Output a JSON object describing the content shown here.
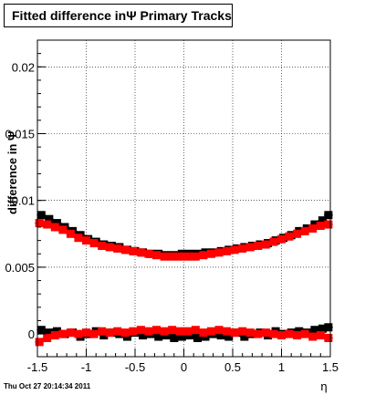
{
  "chart_data": {
    "type": "scatter",
    "title": "Fitted difference inΨ   Primary Tracks",
    "xlabel": "η",
    "ylabel": "difference in Ψ",
    "xlim": [
      -1.5,
      1.5
    ],
    "ylim": [
      -0.0017,
      0.022
    ],
    "grid": true,
    "x_ticks": [
      "-1.5",
      "-1",
      "-0.5",
      "0",
      "0.5",
      "1",
      "1.5"
    ],
    "y_ticks": [
      "0",
      "0.005",
      "0.01",
      "0.015",
      "0.02"
    ],
    "series": [
      {
        "color": "#000000",
        "x": [
          -1.46,
          -1.38,
          -1.3,
          -1.22,
          -1.14,
          -1.06,
          -0.98,
          -0.9,
          -0.82,
          -0.74,
          -0.66,
          -0.58,
          -0.5,
          -0.42,
          -0.34,
          -0.26,
          -0.18,
          -0.1,
          -0.02,
          0.06,
          0.14,
          0.22,
          0.3,
          0.38,
          0.46,
          0.54,
          0.62,
          0.7,
          0.78,
          0.86,
          0.94,
          1.02,
          1.1,
          1.18,
          1.26,
          1.34,
          1.42,
          1.48
        ],
        "y": [
          0.0089,
          0.0086,
          0.0083,
          0.008,
          0.0077,
          0.0074,
          0.0071,
          0.0069,
          0.0067,
          0.0066,
          0.0065,
          0.0063,
          0.0062,
          0.0061,
          0.006,
          0.006,
          0.0059,
          0.0059,
          0.006,
          0.006,
          0.006,
          0.0061,
          0.0061,
          0.0062,
          0.0063,
          0.0064,
          0.0065,
          0.0066,
          0.0067,
          0.0068,
          0.007,
          0.0072,
          0.0074,
          0.0077,
          0.0079,
          0.0082,
          0.0085,
          0.0089
        ],
        "lower_y": [
          0.0003,
          0.0001,
          0.0002,
          0.0,
          0.0001,
          -0.0002,
          0.0,
          0.0002,
          -0.0001,
          0.0001,
          0.0,
          -0.0002,
          0.0001,
          -0.0001,
          0.0,
          -0.0002,
          -0.0001,
          -0.0003,
          -0.0002,
          -0.0001,
          -0.0003,
          -0.0002,
          0.0,
          -0.0001,
          -0.0002,
          0.0001,
          -0.0002,
          0.0,
          0.0001,
          -0.0001,
          0.0002,
          0.0,
          0.0001,
          0.0002,
          0.0001,
          0.0003,
          0.0004,
          0.0005
        ]
      },
      {
        "color": "#ff0000",
        "x": [
          -1.48,
          -1.4,
          -1.32,
          -1.24,
          -1.16,
          -1.08,
          -1.0,
          -0.92,
          -0.84,
          -0.76,
          -0.68,
          -0.6,
          -0.52,
          -0.44,
          -0.36,
          -0.28,
          -0.2,
          -0.12,
          -0.04,
          0.04,
          0.12,
          0.2,
          0.28,
          0.36,
          0.44,
          0.52,
          0.6,
          0.68,
          0.76,
          0.84,
          0.92,
          1.0,
          1.08,
          1.16,
          1.24,
          1.32,
          1.4,
          1.48
        ],
        "y": [
          0.0083,
          0.0082,
          0.008,
          0.0078,
          0.0075,
          0.0072,
          0.007,
          0.0068,
          0.0066,
          0.0065,
          0.0064,
          0.0063,
          0.0062,
          0.0061,
          0.006,
          0.0059,
          0.0058,
          0.0058,
          0.0058,
          0.0058,
          0.0058,
          0.0059,
          0.006,
          0.0061,
          0.0062,
          0.0063,
          0.0064,
          0.0065,
          0.0066,
          0.0067,
          0.0069,
          0.0071,
          0.0073,
          0.0075,
          0.0077,
          0.0079,
          0.0081,
          0.0082
        ],
        "lower_y": [
          -0.0006,
          -0.0003,
          -0.0001,
          0.0,
          0.0001,
          0.0,
          0.0001,
          0.0,
          0.0002,
          0.0001,
          0.0002,
          0.0001,
          0.0002,
          0.0003,
          0.0002,
          0.0003,
          0.0002,
          0.0003,
          0.0002,
          0.0002,
          0.0003,
          0.0001,
          0.0002,
          0.0003,
          0.0002,
          0.0001,
          0.0002,
          0.0001,
          0.0,
          0.0001,
          0.0,
          -0.0001,
          0.0,
          -0.0001,
          0.0,
          -0.0002,
          -0.0001,
          -0.0003
        ]
      }
    ]
  },
  "footer": {
    "date": "Thu Oct 27 20:14:34 2011"
  }
}
